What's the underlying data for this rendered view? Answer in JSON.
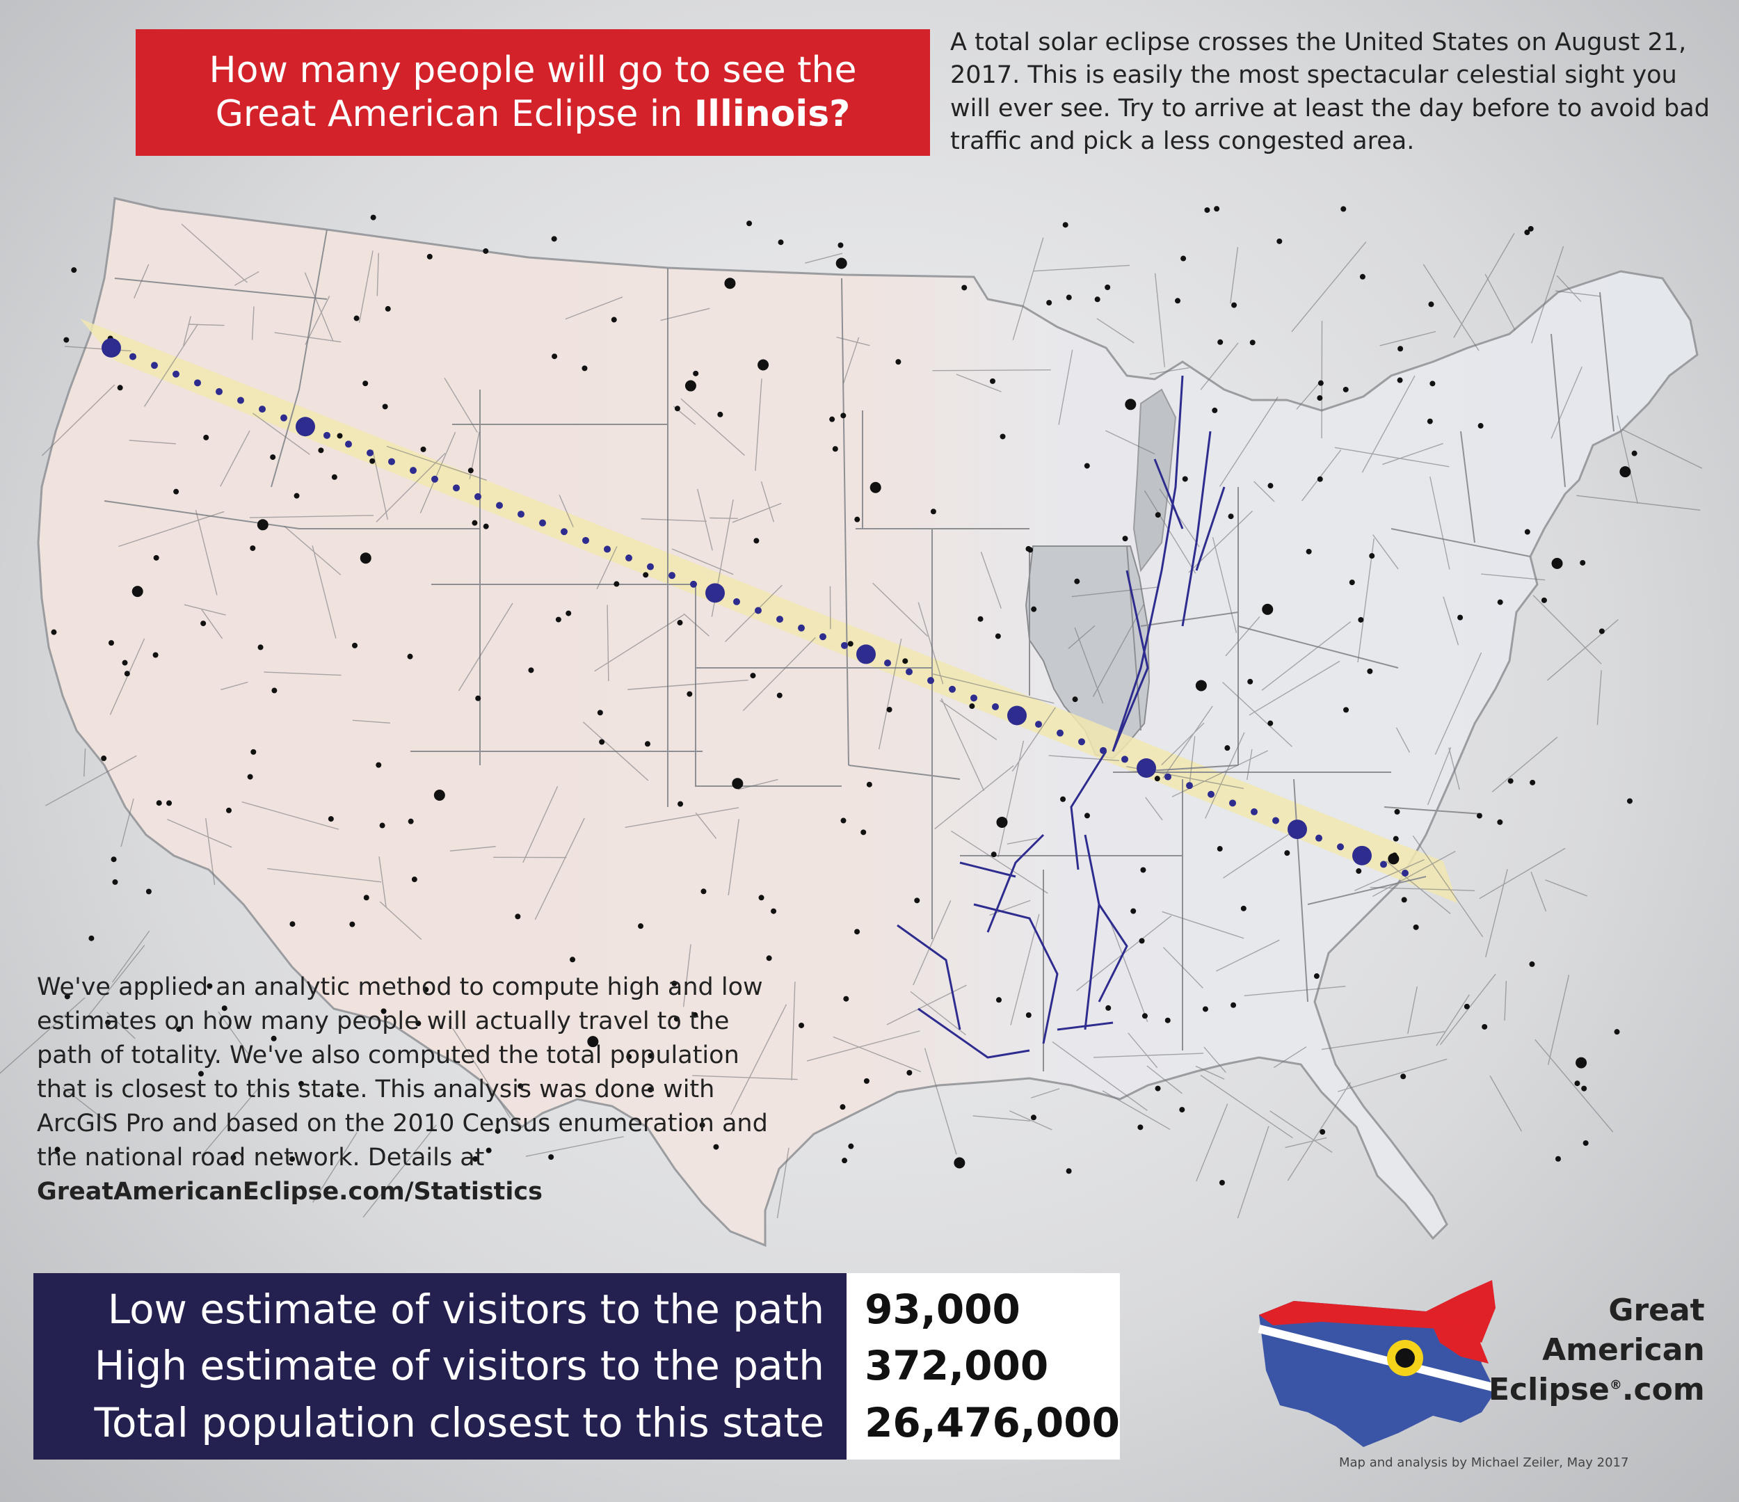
{
  "title": {
    "line1": "How many people will go to see the",
    "line2_prefix": "Great American Eclipse in ",
    "line2_state": "Illinois?"
  },
  "intro_text": "A total solar eclipse crosses the United States on August 21, 2017. This is easily the most spectacular celestial sight you will ever see. Try to arrive at least the day before to avoid bad traffic and pick a less congested area.",
  "method": {
    "text": "We've applied an analytic method to compute high and low estimates on how many people will actually travel to the path of totality. We've also computed the total population that is closest to this state. This analysis was done with ArcGIS Pro and based on the 2010 Census enumeration and the national road network. Details at ",
    "link": "GreatAmericanEclipse.com/Statistics"
  },
  "stats": [
    {
      "label": "Low estimate of visitors to the path",
      "value": "93,000"
    },
    {
      "label": "High estimate of visitors to the path",
      "value": "372,000"
    },
    {
      "label": "Total population closest to this state",
      "value": "26,476,000"
    }
  ],
  "logo": {
    "line1": "Great",
    "line2": "American",
    "line3": "Eclipse",
    "reg": "®",
    "suffix": ".com"
  },
  "credit": "Map and analysis by Michael Zeiler, May 2017",
  "map": {
    "highlighted_state": "Illinois",
    "colors": {
      "land": "#e6e8ec",
      "west_land": "#efe3df",
      "highlight": "#c5c9ce",
      "path_band": "#f1e9b3",
      "path_cities": "#2e2d8f",
      "routes": "#2e2d8f",
      "cities": "#111111",
      "title_red": "#d4222b",
      "stats_navy": "#24204f"
    }
  }
}
